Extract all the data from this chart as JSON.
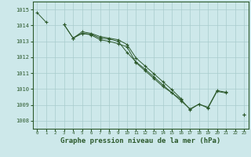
{
  "background_color": "#cde8ea",
  "grid_color": "#a8cccc",
  "line_color": "#2d5a2d",
  "xlabel": "Graphe pression niveau de la mer (hPa)",
  "xlabel_fontsize": 6.5,
  "ylim": [
    1007.5,
    1015.5
  ],
  "xlim": [
    -0.5,
    23.5
  ],
  "yticks": [
    1008,
    1009,
    1010,
    1011,
    1012,
    1013,
    1014,
    1015
  ],
  "xticks": [
    0,
    1,
    2,
    3,
    4,
    5,
    6,
    7,
    8,
    9,
    10,
    11,
    12,
    13,
    14,
    15,
    16,
    17,
    18,
    19,
    20,
    21,
    22,
    23
  ],
  "series1": [
    1014.8,
    1014.2,
    null,
    1014.05,
    1013.2,
    1013.5,
    1013.45,
    1013.2,
    1013.15,
    1013.0,
    1012.3,
    1011.7,
    1011.25,
    1010.75,
    1010.25,
    1009.75,
    1009.35,
    1008.7,
    1009.05,
    1008.85,
    1009.9,
    1009.8,
    null,
    1008.4
  ],
  "series2": [
    null,
    null,
    null,
    1014.05,
    1013.2,
    1013.5,
    1013.4,
    1013.1,
    1013.0,
    1012.85,
    1012.65,
    1011.65,
    1011.15,
    1010.65,
    1010.15,
    1009.75,
    1009.25,
    1008.75,
    1009.05,
    1008.8,
    1009.85,
    1009.75,
    null,
    1008.4
  ],
  "series3": [
    null,
    null,
    null,
    null,
    1013.2,
    1013.6,
    1013.5,
    1013.3,
    1013.2,
    1013.1,
    1012.8,
    1011.95,
    1011.45,
    1010.95,
    1010.45,
    1009.95,
    1009.4,
    null,
    null,
    null,
    null,
    null,
    null,
    null
  ]
}
